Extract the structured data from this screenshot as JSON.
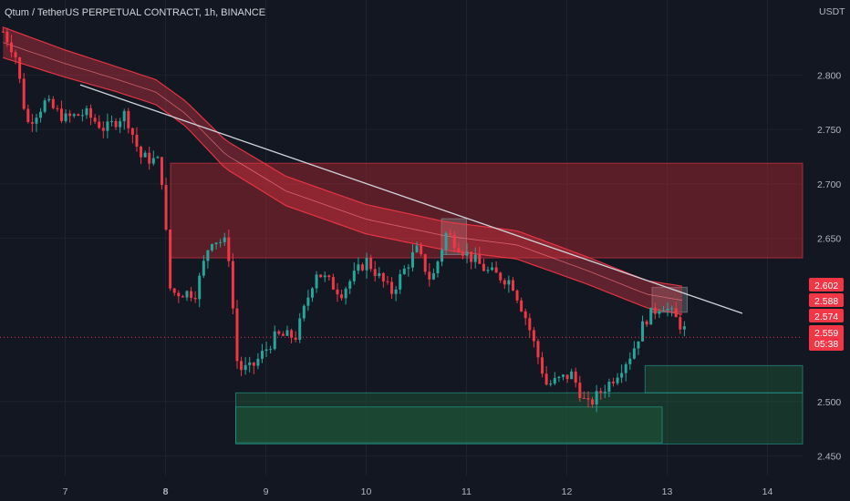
{
  "header": {
    "title": "Qtum / TetherUS PERPETUAL CONTRACT, 1h, BINANCE",
    "currency": "USDT"
  },
  "colors": {
    "background": "#131722",
    "grid": "#1e222d",
    "up": "#26a69a",
    "down": "#f23645",
    "band": "#f23645",
    "resistance_zone": "#b22833",
    "support_zone": "#1e5a3a",
    "trendline": "#d1d4dc"
  },
  "chart_data": {
    "type": "candlestick",
    "x_axis": {
      "unit": "day",
      "range": [
        6.35,
        14.35
      ],
      "ticks": [
        {
          "value": 7,
          "label": "7"
        },
        {
          "value": 8,
          "label": "8"
        },
        {
          "value": 9,
          "label": "9"
        },
        {
          "value": 10,
          "label": "10"
        },
        {
          "value": 11,
          "label": "11"
        },
        {
          "value": 12,
          "label": "12"
        },
        {
          "value": 13,
          "label": "13"
        },
        {
          "value": 14,
          "label": "14"
        }
      ]
    },
    "y_axis": {
      "range": [
        2.432,
        2.869
      ],
      "ticks": [
        {
          "value": 2.8,
          "label": "2.800"
        },
        {
          "value": 2.75,
          "label": "2.750"
        },
        {
          "value": 2.7,
          "label": "2.700"
        },
        {
          "value": 2.65,
          "label": "2.650"
        },
        {
          "value": 2.5,
          "label": "2.500"
        },
        {
          "value": 2.45,
          "label": "2.450"
        }
      ]
    },
    "price_key_points": [
      [
        6.38,
        2.84
      ],
      [
        6.5,
        2.82
      ],
      [
        6.62,
        2.755
      ],
      [
        6.8,
        2.775
      ],
      [
        7.0,
        2.76
      ],
      [
        7.2,
        2.765
      ],
      [
        7.4,
        2.75
      ],
      [
        7.6,
        2.765
      ],
      [
        7.75,
        2.725
      ],
      [
        7.95,
        2.72
      ],
      [
        8.05,
        2.6
      ],
      [
        8.3,
        2.6
      ],
      [
        8.45,
        2.65
      ],
      [
        8.62,
        2.645
      ],
      [
        8.72,
        2.53
      ],
      [
        8.85,
        2.53
      ],
      [
        9.1,
        2.56
      ],
      [
        9.3,
        2.56
      ],
      [
        9.5,
        2.62
      ],
      [
        9.75,
        2.6
      ],
      [
        10.0,
        2.63
      ],
      [
        10.25,
        2.6
      ],
      [
        10.5,
        2.64
      ],
      [
        10.65,
        2.61
      ],
      [
        10.8,
        2.655
      ],
      [
        10.95,
        2.64
      ],
      [
        11.2,
        2.62
      ],
      [
        11.45,
        2.61
      ],
      [
        11.6,
        2.575
      ],
      [
        11.8,
        2.515
      ],
      [
        12.05,
        2.525
      ],
      [
        12.2,
        2.495
      ],
      [
        12.45,
        2.52
      ],
      [
        12.65,
        2.545
      ],
      [
        12.78,
        2.575
      ],
      [
        12.95,
        2.59
      ],
      [
        13.05,
        2.58
      ],
      [
        13.17,
        2.566
      ]
    ],
    "ema_band": {
      "upper_points": [
        [
          6.38,
          2.844
        ],
        [
          7.0,
          2.823
        ],
        [
          7.5,
          2.808
        ],
        [
          7.9,
          2.796
        ],
        [
          8.2,
          2.776
        ],
        [
          8.6,
          2.74
        ],
        [
          9.2,
          2.707
        ],
        [
          10.0,
          2.681
        ],
        [
          10.8,
          2.665
        ],
        [
          11.5,
          2.657
        ],
        [
          12.2,
          2.633
        ],
        [
          12.8,
          2.611
        ],
        [
          13.15,
          2.606
        ]
      ],
      "lower_points": [
        [
          6.38,
          2.816
        ],
        [
          7.0,
          2.798
        ],
        [
          7.5,
          2.785
        ],
        [
          7.9,
          2.773
        ],
        [
          8.2,
          2.753
        ],
        [
          8.6,
          2.714
        ],
        [
          9.2,
          2.68
        ],
        [
          10.0,
          2.654
        ],
        [
          10.8,
          2.639
        ],
        [
          11.5,
          2.631
        ],
        [
          12.2,
          2.608
        ],
        [
          12.8,
          2.586
        ],
        [
          13.15,
          2.58
        ]
      ]
    },
    "trendline": {
      "from": [
        7.15,
        2.791
      ],
      "to": [
        13.75,
        2.581
      ]
    },
    "zones": [
      {
        "kind": "resistance",
        "x": [
          8.05,
          14.35
        ],
        "y": [
          2.632,
          2.719
        ]
      },
      {
        "kind": "support",
        "x": [
          8.7,
          14.35
        ],
        "y": [
          2.461,
          2.508
        ]
      },
      {
        "kind": "support",
        "x": [
          8.7,
          12.95
        ],
        "y": [
          2.462,
          2.495
        ]
      },
      {
        "kind": "support",
        "x": [
          12.78,
          14.35
        ],
        "y": [
          2.508,
          2.533
        ]
      },
      {
        "kind": "highlight",
        "x": [
          10.75,
          11.0
        ],
        "y": [
          2.635,
          2.668
        ]
      },
      {
        "kind": "highlight",
        "x": [
          12.85,
          13.2
        ],
        "y": [
          2.582,
          2.605
        ]
      }
    ],
    "price_tags": [
      {
        "value": 2.602,
        "label": "2.602",
        "color": "#f23645"
      },
      {
        "value": 2.588,
        "label": "2.588",
        "color": "#f23645"
      },
      {
        "value": 2.574,
        "label": "2.574",
        "color": "#f23645"
      },
      {
        "value": 2.559,
        "label": "2.559",
        "sub": "05:38",
        "color": "#f23645",
        "current": true
      }
    ]
  }
}
